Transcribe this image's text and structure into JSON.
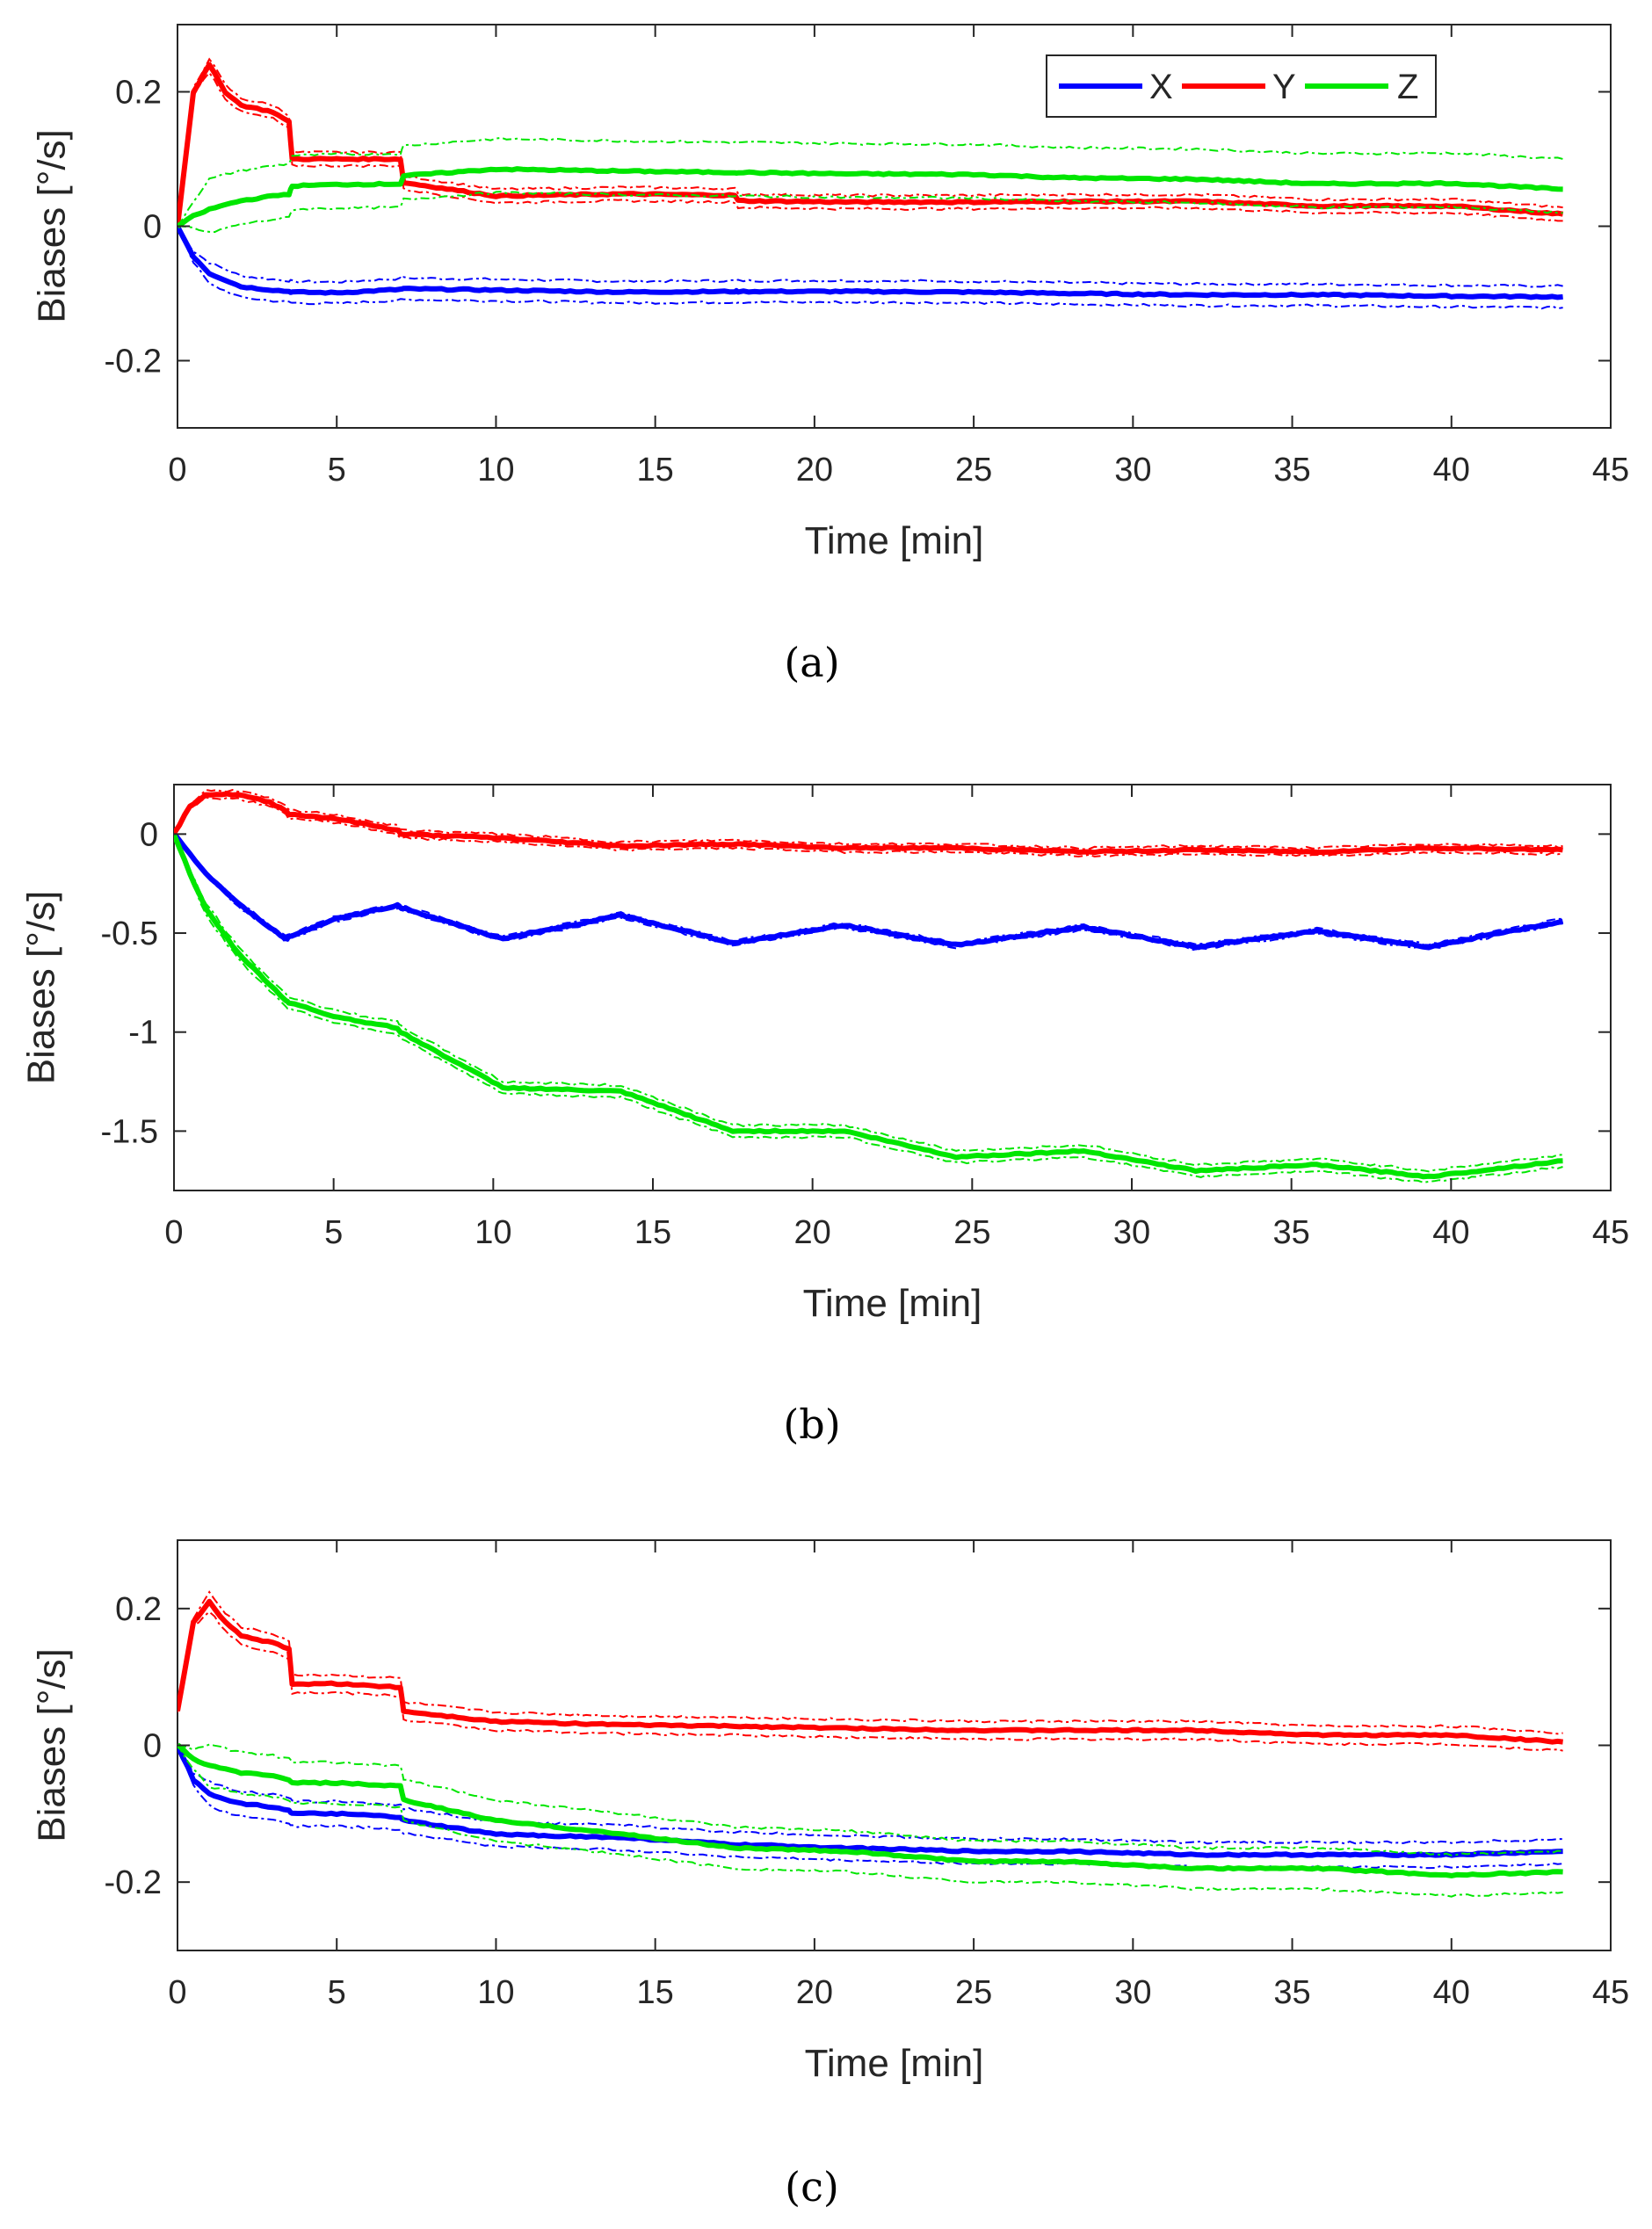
{
  "legend": {
    "entries": [
      {
        "label": "X",
        "color": "#0000ff"
      },
      {
        "label": "Y",
        "color": "#ff0000"
      },
      {
        "label": "Z",
        "color": "#00e600"
      }
    ]
  },
  "chart_data": [
    {
      "type": "line",
      "panel": "a",
      "caption": "(a)",
      "title": "",
      "xlabel": "Time [min]",
      "ylabel": "Biases [°/s]",
      "xlim": [
        0,
        45
      ],
      "ylim": [
        -0.3,
        0.3
      ],
      "xticks": [
        0,
        5,
        10,
        15,
        20,
        25,
        30,
        35,
        40,
        45
      ],
      "xtick_labels": [
        "0",
        "5",
        "10",
        "15",
        "20",
        "25",
        "30",
        "35",
        "40",
        "45"
      ],
      "yticks": [
        -0.2,
        0,
        0.2
      ],
      "ytick_labels": [
        "-0.2",
        "0",
        "0.2"
      ],
      "grid": false,
      "legend_position": "top-right",
      "x": [
        0,
        0.5,
        1,
        1.5,
        2,
        3,
        3.5,
        3.6,
        5,
        7,
        7.1,
        10,
        14,
        17.5,
        17.6,
        21,
        25,
        28,
        32,
        35.8,
        40,
        43.5
      ],
      "series": [
        {
          "name": "X",
          "color": "#0000ff",
          "values": [
            0,
            -0.045,
            -0.07,
            -0.08,
            -0.09,
            -0.095,
            -0.097,
            -0.098,
            -0.099,
            -0.094,
            -0.093,
            -0.095,
            -0.098,
            -0.097,
            -0.097,
            -0.097,
            -0.098,
            -0.1,
            -0.102,
            -0.102,
            -0.104,
            -0.105
          ],
          "band": 0.016
        },
        {
          "name": "Y",
          "color": "#ff0000",
          "values": [
            0,
            0.2,
            0.24,
            0.2,
            0.18,
            0.17,
            0.155,
            0.1,
            0.1,
            0.1,
            0.065,
            0.045,
            0.048,
            0.046,
            0.038,
            0.036,
            0.036,
            0.037,
            0.037,
            0.03,
            0.03,
            0.018
          ],
          "band": 0.01
        },
        {
          "name": "Z",
          "color": "#00e600",
          "values": [
            0,
            0.015,
            0.025,
            0.032,
            0.038,
            0.045,
            0.048,
            0.06,
            0.062,
            0.063,
            0.075,
            0.085,
            0.082,
            0.08,
            0.08,
            0.078,
            0.077,
            0.072,
            0.07,
            0.063,
            0.064,
            0.055
          ],
          "band_upper": 0.045,
          "band_lower": 0.035
        }
      ]
    },
    {
      "type": "line",
      "panel": "b",
      "caption": "(b)",
      "title": "",
      "xlabel": "Time [min]",
      "ylabel": "Biases [°/s]",
      "xlim": [
        0,
        45
      ],
      "ylim": [
        -1.8,
        0.25
      ],
      "xticks": [
        0,
        5,
        10,
        15,
        20,
        25,
        30,
        35,
        40,
        45
      ],
      "xtick_labels": [
        "0",
        "5",
        "10",
        "15",
        "20",
        "25",
        "30",
        "35",
        "40",
        "45"
      ],
      "yticks": [
        -1.5,
        -1,
        -0.5,
        0
      ],
      "ytick_labels": [
        "-1.5",
        "-1",
        "-0.5",
        "0"
      ],
      "grid": false,
      "legend_position": "none",
      "x": [
        0,
        0.5,
        1,
        2,
        3,
        3.5,
        3.6,
        5,
        7,
        7.1,
        10.3,
        14,
        17.5,
        21,
        24.5,
        28.5,
        32,
        35.8,
        39.3,
        43.5
      ],
      "series": [
        {
          "name": "X",
          "color": "#0000ff",
          "values": [
            0,
            -0.1,
            -0.2,
            -0.35,
            -0.47,
            -0.53,
            -0.52,
            -0.43,
            -0.36,
            -0.37,
            -0.53,
            -0.41,
            -0.55,
            -0.46,
            -0.56,
            -0.47,
            -0.57,
            -0.49,
            -0.57,
            -0.44
          ],
          "band": 0.012
        },
        {
          "name": "Y",
          "color": "#ff0000",
          "values": [
            0,
            0.14,
            0.2,
            0.2,
            0.16,
            0.12,
            0.1,
            0.08,
            0.02,
            0,
            -0.02,
            -0.06,
            -0.05,
            -0.07,
            -0.07,
            -0.09,
            -0.08,
            -0.09,
            -0.07,
            -0.08
          ],
          "band": 0.02
        },
        {
          "name": "Z",
          "color": "#00e600",
          "values": [
            0,
            -0.2,
            -0.38,
            -0.6,
            -0.76,
            -0.84,
            -0.85,
            -0.92,
            -0.98,
            -1.0,
            -1.28,
            -1.3,
            -1.5,
            -1.5,
            -1.63,
            -1.6,
            -1.7,
            -1.67,
            -1.73,
            -1.65
          ],
          "band": 0.03
        }
      ]
    },
    {
      "type": "line",
      "panel": "c",
      "caption": "(c)",
      "title": "",
      "xlabel": "Time [min]",
      "ylabel": "Biases [°/s]",
      "xlim": [
        0,
        45
      ],
      "ylim": [
        -0.3,
        0.3
      ],
      "xticks": [
        0,
        5,
        10,
        15,
        20,
        25,
        30,
        35,
        40,
        45
      ],
      "xtick_labels": [
        "0",
        "5",
        "10",
        "15",
        "20",
        "25",
        "30",
        "35",
        "40",
        "45"
      ],
      "yticks": [
        -0.2,
        0,
        0.2
      ],
      "ytick_labels": [
        "-0.2",
        "0",
        "0.2"
      ],
      "grid": false,
      "legend_position": "none",
      "x": [
        0,
        0.5,
        1,
        1.5,
        2,
        3,
        3.5,
        3.6,
        5,
        7,
        7.1,
        10,
        14,
        17.5,
        21,
        25,
        28,
        32,
        35.8,
        40,
        43.5
      ],
      "series": [
        {
          "name": "X",
          "color": "#0000ff",
          "values": [
            0,
            -0.05,
            -0.07,
            -0.08,
            -0.085,
            -0.09,
            -0.095,
            -0.1,
            -0.1,
            -0.105,
            -0.11,
            -0.13,
            -0.135,
            -0.145,
            -0.15,
            -0.155,
            -0.155,
            -0.16,
            -0.16,
            -0.16,
            -0.155
          ],
          "band": 0.018
        },
        {
          "name": "Y",
          "color": "#ff0000",
          "values": [
            0.05,
            0.18,
            0.21,
            0.18,
            0.16,
            0.15,
            0.14,
            0.09,
            0.09,
            0.085,
            0.05,
            0.035,
            0.03,
            0.028,
            0.025,
            0.022,
            0.022,
            0.022,
            0.015,
            0.015,
            0.005
          ],
          "band": 0.013
        },
        {
          "name": "Z",
          "color": "#00e600",
          "values": [
            0,
            -0.02,
            -0.03,
            -0.035,
            -0.04,
            -0.045,
            -0.05,
            -0.055,
            -0.055,
            -0.06,
            -0.08,
            -0.11,
            -0.13,
            -0.15,
            -0.155,
            -0.17,
            -0.17,
            -0.18,
            -0.18,
            -0.19,
            -0.185
          ],
          "band": 0.03
        }
      ]
    }
  ]
}
